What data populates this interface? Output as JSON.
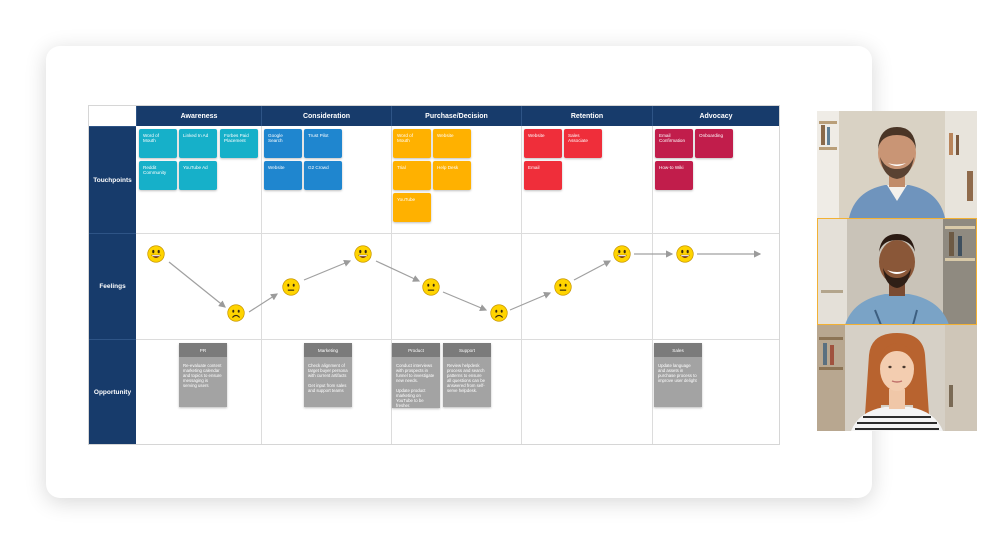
{
  "columns": [
    "Awareness",
    "Consideration",
    "Purchase/Decision",
    "Retention",
    "Advocacy"
  ],
  "rows": [
    "Touchpoints",
    "Feelings",
    "Opportunity"
  ],
  "touchpoints": {
    "awareness": [
      "Word of Mouth",
      "Linked In Ad",
      "Forbes Paid Placement",
      "Reddit Community",
      "YouTube Ad"
    ],
    "consideration": [
      "Google Search",
      "Trust Pilot",
      "Website",
      "G2 Crowd"
    ],
    "purchase": [
      "Word of Mouth",
      "Website",
      "Trial",
      "Help Desk",
      "YouTube"
    ],
    "retention": [
      "Website",
      "Sales Associate",
      "Email"
    ],
    "advocacy": [
      "Email Confirmation",
      "Onboarding",
      "How-to Wiki"
    ]
  },
  "feelings": [
    "happy",
    "sad",
    "neutral",
    "happy",
    "neutral",
    "sad",
    "neutral",
    "happy",
    "happy"
  ],
  "opportunities": [
    {
      "title": "PR",
      "body": "Re-evaluate content marketing calendar and topics to ensure messaging is serving users"
    },
    {
      "title": "Marketing",
      "body": "Check alignment of target buyer persona with current artifacts\n\nGet input from sales and support teams"
    },
    {
      "title": "Product",
      "body": "Conduct interviews with prospects in funnel to investigate new needs.\n\nUpdate product marketing on YouTube to be fresher."
    },
    {
      "title": "Support",
      "body": "Review helpdesk process and search patterns to ensure all questions can be answered from self-serve helpdesk."
    },
    {
      "title": "Sales",
      "body": "Update language and assets in purchase process to improve user delight"
    }
  ],
  "colors": {
    "header": "#173b6b",
    "teal": "#16b0c9",
    "blue": "#1f86cf",
    "orange": "#ffb100",
    "red": "#ef2e3a",
    "crimson": "#c11d4b",
    "note": "#a3a3a3",
    "active_speaker": "#f2b134"
  },
  "participants": [
    {
      "name": "participant-1",
      "active": false
    },
    {
      "name": "participant-2",
      "active": true
    },
    {
      "name": "participant-3",
      "active": false
    }
  ]
}
